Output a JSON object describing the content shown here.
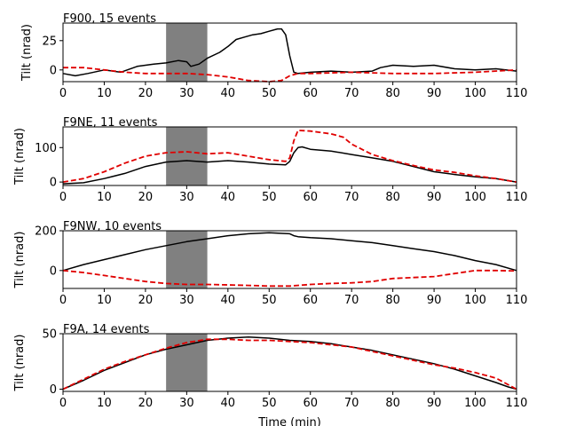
{
  "figure": {
    "xlabel": "Time (min)",
    "ylabel": "Tilt (nrad)"
  },
  "chart_data": [
    {
      "type": "line",
      "title": "F900, 15 events",
      "xlabel": "",
      "ylabel": "Tilt (nrad)",
      "xlim": [
        0,
        110
      ],
      "ylim": [
        -10,
        40
      ],
      "xticks": [
        0,
        10,
        20,
        30,
        40,
        50,
        60,
        70,
        80,
        90,
        100,
        110
      ],
      "yticks": [
        0,
        25
      ],
      "shaded_region": [
        25,
        35
      ],
      "shade_color": "#808080",
      "series": [
        {
          "color": "#000000",
          "style": "solid",
          "x": [
            0,
            3,
            6,
            10,
            14,
            18,
            22,
            25,
            28,
            30,
            31,
            33,
            35,
            38,
            40,
            42,
            44,
            46,
            48,
            50,
            52,
            53,
            54,
            55,
            56,
            57,
            60,
            65,
            70,
            75,
            77,
            80,
            85,
            90,
            95,
            100,
            105,
            110
          ],
          "y": [
            -3,
            -5,
            -3,
            0,
            -2,
            3,
            5,
            6,
            8,
            7,
            3,
            5,
            10,
            15,
            20,
            26,
            28,
            30,
            31,
            33,
            35,
            35,
            30,
            12,
            -2,
            -3,
            -2,
            -1,
            -2,
            -1,
            2,
            4,
            3,
            4,
            1,
            0,
            1,
            -1
          ]
        },
        {
          "color": "#e00000",
          "style": "dashed",
          "x": [
            0,
            5,
            10,
            15,
            20,
            25,
            30,
            35,
            40,
            45,
            50,
            53,
            55,
            57,
            60,
            70,
            80,
            90,
            100,
            110
          ],
          "y": [
            2,
            2,
            0,
            -2,
            -3,
            -3,
            -3,
            -4,
            -6,
            -9,
            -10,
            -9,
            -5,
            -3,
            -3,
            -2,
            -3,
            -3,
            -2,
            0
          ]
        }
      ]
    },
    {
      "type": "line",
      "title": "F9NE, 11 events",
      "xlabel": "",
      "ylabel": "Tilt (nrad)",
      "xlim": [
        0,
        110
      ],
      "ylim": [
        -10,
        160
      ],
      "xticks": [
        0,
        10,
        20,
        30,
        40,
        50,
        60,
        70,
        80,
        90,
        100,
        110
      ],
      "yticks": [
        0,
        100
      ],
      "shaded_region": [
        25,
        35
      ],
      "shade_color": "#808080",
      "series": [
        {
          "color": "#000000",
          "style": "solid",
          "x": [
            0,
            5,
            10,
            15,
            20,
            25,
            30,
            35,
            40,
            45,
            50,
            54,
            55,
            56,
            57,
            58,
            60,
            65,
            70,
            75,
            80,
            85,
            90,
            95,
            100,
            105,
            110
          ],
          "y": [
            -5,
            -2,
            10,
            25,
            45,
            58,
            62,
            58,
            62,
            58,
            52,
            50,
            60,
            85,
            100,
            102,
            95,
            90,
            80,
            70,
            60,
            45,
            30,
            22,
            15,
            10,
            0
          ]
        },
        {
          "color": "#e00000",
          "style": "dashed",
          "x": [
            0,
            5,
            10,
            15,
            20,
            25,
            30,
            35,
            40,
            45,
            50,
            54,
            55,
            56,
            57,
            60,
            65,
            68,
            70,
            75,
            80,
            85,
            90,
            95,
            100,
            105,
            110
          ],
          "y": [
            0,
            10,
            30,
            55,
            75,
            85,
            88,
            82,
            85,
            75,
            65,
            60,
            70,
            120,
            150,
            148,
            140,
            130,
            110,
            80,
            62,
            48,
            35,
            28,
            18,
            10,
            0
          ]
        }
      ]
    },
    {
      "type": "line",
      "title": "F9NW, 10 events",
      "xlabel": "",
      "ylabel": "Tilt (nrad)",
      "xlim": [
        0,
        110
      ],
      "ylim": [
        -90,
        200
      ],
      "xticks": [
        0,
        10,
        20,
        30,
        40,
        50,
        60,
        70,
        80,
        90,
        100,
        110
      ],
      "yticks": [
        0,
        200
      ],
      "shaded_region": [
        25,
        35
      ],
      "shade_color": "#808080",
      "series": [
        {
          "color": "#000000",
          "style": "solid",
          "x": [
            0,
            5,
            10,
            15,
            20,
            25,
            30,
            35,
            40,
            45,
            50,
            55,
            56,
            57,
            60,
            65,
            70,
            75,
            80,
            85,
            90,
            95,
            100,
            105,
            110
          ],
          "y": [
            0,
            30,
            55,
            80,
            105,
            125,
            145,
            160,
            175,
            185,
            190,
            185,
            175,
            170,
            165,
            160,
            150,
            140,
            125,
            110,
            95,
            75,
            50,
            30,
            0
          ]
        },
        {
          "color": "#e00000",
          "style": "dashed",
          "x": [
            0,
            5,
            10,
            15,
            20,
            25,
            30,
            35,
            40,
            45,
            50,
            55,
            60,
            65,
            70,
            75,
            80,
            85,
            90,
            95,
            100,
            105,
            110
          ],
          "y": [
            0,
            -10,
            -25,
            -40,
            -55,
            -65,
            -70,
            -70,
            -72,
            -75,
            -78,
            -78,
            -70,
            -65,
            -62,
            -55,
            -40,
            -35,
            -30,
            -15,
            0,
            0,
            -2
          ]
        }
      ]
    },
    {
      "type": "line",
      "title": "F9A, 14 events",
      "xlabel": "Time (min)",
      "ylabel": "Tilt (nrad)",
      "xlim": [
        0,
        110
      ],
      "ylim": [
        -2,
        50
      ],
      "xticks": [
        0,
        10,
        20,
        30,
        40,
        50,
        60,
        70,
        80,
        90,
        100,
        110
      ],
      "yticks": [
        0,
        50
      ],
      "shaded_region": [
        25,
        35
      ],
      "shade_color": "#808080",
      "series": [
        {
          "color": "#000000",
          "style": "solid",
          "x": [
            0,
            5,
            10,
            15,
            20,
            25,
            30,
            35,
            40,
            45,
            50,
            55,
            60,
            65,
            70,
            75,
            80,
            85,
            90,
            95,
            100,
            105,
            108,
            110
          ],
          "y": [
            0,
            8,
            17,
            24,
            31,
            36,
            40,
            44,
            46,
            47,
            46,
            44,
            43,
            41,
            38,
            35,
            31,
            27,
            23,
            18,
            12,
            6,
            2,
            0
          ]
        },
        {
          "color": "#e00000",
          "style": "dashed",
          "x": [
            0,
            5,
            10,
            15,
            20,
            25,
            30,
            35,
            40,
            45,
            50,
            55,
            60,
            65,
            70,
            75,
            80,
            85,
            90,
            95,
            100,
            105,
            108,
            110
          ],
          "y": [
            0,
            9,
            18,
            25,
            31,
            37,
            42,
            45,
            45,
            44,
            44,
            43,
            42,
            40,
            38,
            34,
            30,
            26,
            22,
            19,
            15,
            10,
            4,
            0
          ]
        }
      ]
    }
  ]
}
